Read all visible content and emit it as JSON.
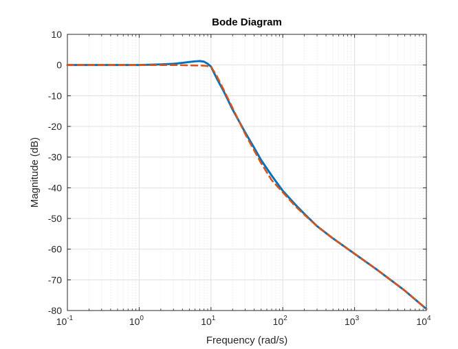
{
  "chart_data": {
    "type": "line",
    "title": "Bode Diagram",
    "xlabel": "Frequency  (rad/s)",
    "ylabel": "Magnitude (dB)",
    "xscale": "log",
    "xlim": [
      0.1,
      10000
    ],
    "ylim": [
      -80,
      10
    ],
    "grid": true,
    "minor_grid": true,
    "x_ticks": [
      {
        "base": "10",
        "exp": "-1"
      },
      {
        "base": "10",
        "exp": "0"
      },
      {
        "base": "10",
        "exp": "1"
      },
      {
        "base": "10",
        "exp": "2"
      },
      {
        "base": "10",
        "exp": "3"
      },
      {
        "base": "10",
        "exp": "4"
      }
    ],
    "y_ticks": [
      "10",
      "0",
      "-10",
      "-20",
      "-30",
      "-40",
      "-50",
      "-60",
      "-70",
      "-80"
    ],
    "series": [
      {
        "color": "#0072BD",
        "style": "solid",
        "points": [
          [
            0.1,
            0
          ],
          [
            0.5,
            0
          ],
          [
            1,
            0
          ],
          [
            2,
            0.2
          ],
          [
            3,
            0.4
          ],
          [
            4,
            0.7
          ],
          [
            5,
            1.0
          ],
          [
            6,
            1.2
          ],
          [
            7,
            1.3
          ],
          [
            8,
            1.1
          ],
          [
            9,
            0.4
          ],
          [
            10,
            -0.5
          ],
          [
            11,
            -2.5
          ],
          [
            12,
            -4.3
          ],
          [
            15,
            -8.5
          ],
          [
            20,
            -14.5
          ],
          [
            30,
            -22
          ],
          [
            40,
            -27
          ],
          [
            50,
            -31
          ],
          [
            70,
            -36
          ],
          [
            100,
            -41
          ],
          [
            150,
            -45.5
          ],
          [
            200,
            -48.5
          ],
          [
            300,
            -52.5
          ],
          [
            500,
            -56.5
          ],
          [
            1000,
            -61.5
          ],
          [
            2000,
            -66.5
          ],
          [
            5000,
            -73.5
          ],
          [
            10000,
            -79.5
          ]
        ]
      },
      {
        "color": "#D95319",
        "style": "dashed",
        "points": [
          [
            0.1,
            0
          ],
          [
            1,
            0
          ],
          [
            3,
            0
          ],
          [
            5,
            -0.1
          ],
          [
            8,
            -0.2
          ],
          [
            10,
            -0.5
          ],
          [
            12,
            -3.5
          ],
          [
            15,
            -8
          ],
          [
            20,
            -14
          ],
          [
            30,
            -22.5
          ],
          [
            50,
            -32
          ],
          [
            70,
            -37.5
          ],
          [
            100,
            -41.5
          ],
          [
            150,
            -46
          ],
          [
            200,
            -48.8
          ],
          [
            300,
            -52.5
          ],
          [
            500,
            -56.5
          ],
          [
            1000,
            -61.5
          ],
          [
            2000,
            -66.5
          ],
          [
            5000,
            -73.5
          ],
          [
            10000,
            -79.5
          ]
        ]
      }
    ]
  }
}
